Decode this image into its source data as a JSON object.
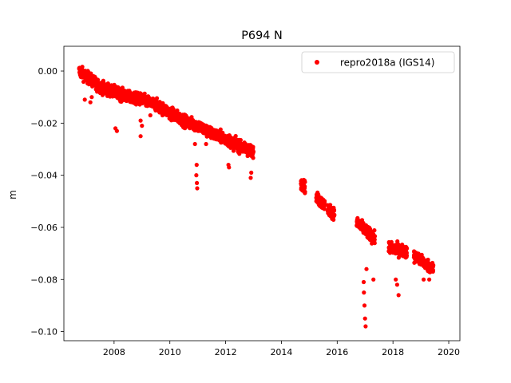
{
  "chart_data": {
    "type": "scatter",
    "title": "P694 N",
    "xlabel": "",
    "ylabel": "m",
    "xlim": [
      2006.2,
      2020.4
    ],
    "ylim": [
      -0.1035,
      0.0095
    ],
    "x_ticks": [
      2008,
      2010,
      2012,
      2014,
      2016,
      2018,
      2020
    ],
    "y_ticks": [
      0.0,
      -0.02,
      -0.04,
      -0.06,
      -0.08,
      -0.1
    ],
    "y_tick_labels": [
      "0.00",
      "−0.02",
      "−0.04",
      "−0.06",
      "−0.08",
      "−0.10"
    ],
    "grid": false,
    "legend_position": "top-right",
    "series": [
      {
        "name": "repro2018a (IGS14)",
        "color": "#ff0000",
        "marker": "circle",
        "trend": [
          [
            2006.75,
            0.0
          ],
          [
            2007.0,
            -0.002
          ],
          [
            2007.5,
            -0.006
          ],
          [
            2008.0,
            -0.008
          ],
          [
            2008.5,
            -0.01
          ],
          [
            2009.0,
            -0.011
          ],
          [
            2009.5,
            -0.013
          ],
          [
            2010.0,
            -0.016
          ],
          [
            2010.5,
            -0.019
          ],
          [
            2011.0,
            -0.021
          ],
          [
            2011.5,
            -0.024
          ],
          [
            2012.0,
            -0.026
          ],
          [
            2012.5,
            -0.029
          ],
          [
            2013.0,
            -0.031
          ],
          [
            2014.7,
            -0.043
          ],
          [
            2015.3,
            -0.049
          ],
          [
            2015.8,
            -0.054
          ],
          [
            2016.8,
            -0.059
          ],
          [
            2017.3,
            -0.064
          ],
          [
            2017.9,
            -0.068
          ],
          [
            2018.4,
            -0.069
          ],
          [
            2018.9,
            -0.072
          ],
          [
            2019.45,
            -0.076
          ]
        ],
        "gaps": [
          [
            2013.05,
            2014.6
          ],
          [
            2014.85,
            2015.25
          ],
          [
            2015.55,
            2015.65
          ],
          [
            2015.9,
            2016.7
          ],
          [
            2017.35,
            2017.85
          ],
          [
            2018.5,
            2018.75
          ]
        ],
        "outliers": [
          [
            2006.95,
            -0.011
          ],
          [
            2007.15,
            -0.012
          ],
          [
            2007.2,
            -0.01
          ],
          [
            2007.35,
            -0.007
          ],
          [
            2008.05,
            -0.022
          ],
          [
            2008.1,
            -0.023
          ],
          [
            2008.95,
            -0.025
          ],
          [
            2008.95,
            -0.019
          ],
          [
            2009.0,
            -0.021
          ],
          [
            2009.3,
            -0.017
          ],
          [
            2010.95,
            -0.04
          ],
          [
            2010.97,
            -0.043
          ],
          [
            2010.98,
            -0.045
          ],
          [
            2010.96,
            -0.036
          ],
          [
            2010.9,
            -0.028
          ],
          [
            2011.3,
            -0.028
          ],
          [
            2012.1,
            -0.036
          ],
          [
            2012.12,
            -0.037
          ],
          [
            2012.9,
            -0.041
          ],
          [
            2012.92,
            -0.039
          ],
          [
            2016.95,
            -0.081
          ],
          [
            2016.96,
            -0.085
          ],
          [
            2016.98,
            -0.09
          ],
          [
            2017.0,
            -0.095
          ],
          [
            2017.02,
            -0.098
          ],
          [
            2017.05,
            -0.076
          ],
          [
            2017.3,
            -0.08
          ],
          [
            2018.15,
            -0.082
          ],
          [
            2018.2,
            -0.086
          ],
          [
            2018.1,
            -0.08
          ],
          [
            2019.1,
            -0.08
          ],
          [
            2019.3,
            -0.08
          ]
        ]
      }
    ]
  }
}
